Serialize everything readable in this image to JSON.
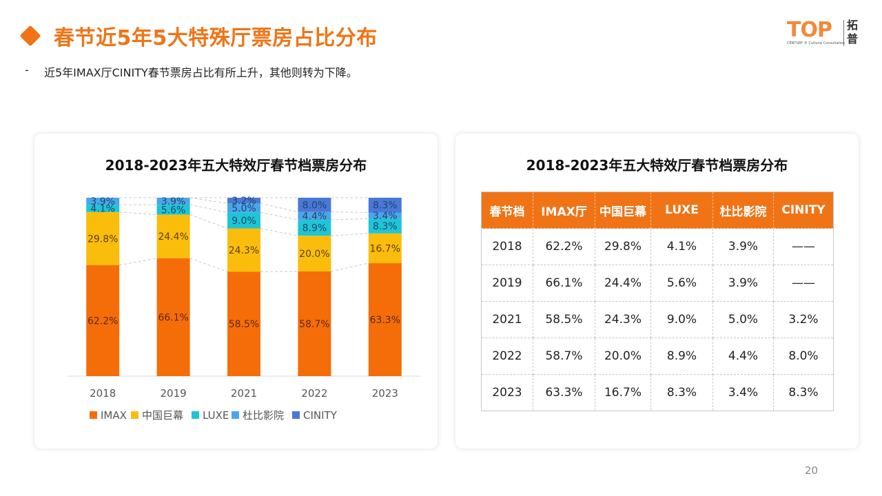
{
  "header": {
    "title": "春节近5年5大特殊厅票房占比分布",
    "bullet": "-",
    "subtitle": "近5年IMAX厅CINITY春节票房占比有所上升，其他则转为下降。"
  },
  "logo": {
    "brand": "TOP",
    "tagline": "CENTURY ® Cultural Consultation",
    "cn": "拓普"
  },
  "colors": {
    "accent": "#f07416",
    "IMAX": "#f56d09",
    "中国巨幕": "#fbbd0b",
    "LUXE": "#1ec5d6",
    "杜比影院": "#4aa6ea",
    "CINITY": "#4a78d8"
  },
  "chart_data": {
    "type": "bar",
    "stacked": true,
    "percent_stacked": true,
    "title": "2018-2023年五大特效厅春节档票房分布",
    "categories": [
      "2018",
      "2019",
      "2021",
      "2022",
      "2023"
    ],
    "series": [
      {
        "name": "IMAX",
        "values": [
          62.2,
          66.1,
          58.5,
          58.7,
          63.3
        ],
        "labels": [
          "62.2%",
          "66.1%",
          "58.5%",
          "58.7%",
          "63.3%"
        ]
      },
      {
        "name": "中国巨幕",
        "values": [
          29.8,
          24.4,
          24.3,
          20.0,
          16.7
        ],
        "labels": [
          "29.8%",
          "24.4%",
          "24.3%",
          "20.0%",
          "16.7%"
        ]
      },
      {
        "name": "LUXE",
        "values": [
          4.1,
          5.6,
          9.0,
          8.9,
          8.3
        ],
        "labels": [
          "4.1%",
          "5.6%",
          "9.0%",
          "8.9%",
          "8.3%"
        ]
      },
      {
        "name": "杜比影院",
        "values": [
          3.9,
          3.9,
          5.0,
          4.4,
          3.4
        ],
        "labels": [
          "3.9%",
          "3.9%",
          "5.0%",
          "4.4%",
          "3.4%"
        ]
      },
      {
        "name": "CINITY",
        "values": [
          0,
          0,
          3.2,
          8.0,
          8.3
        ],
        "labels": [
          "",
          "",
          "3.2%",
          "8.0%",
          "8.3%"
        ]
      }
    ],
    "ylim": [
      0,
      100
    ],
    "xlabel": "",
    "ylabel": "",
    "series_lines": true,
    "grid": false,
    "legend": "bottom"
  },
  "table": {
    "title": "2018-2023年五大特效厅春节档票房分布",
    "headers": [
      "春节档",
      "IMAX厅",
      "中国巨幕",
      "LUXE",
      "杜比影院",
      "CINITY"
    ],
    "rows": [
      [
        "2018",
        "62.2%",
        "29.8%",
        "4.1%",
        "3.9%",
        "——"
      ],
      [
        "2019",
        "66.1%",
        "24.4%",
        "5.6%",
        "3.9%",
        "——"
      ],
      [
        "2021",
        "58.5%",
        "24.3%",
        "9.0%",
        "5.0%",
        "3.2%"
      ],
      [
        "2022",
        "58.7%",
        "20.0%",
        "8.9%",
        "4.4%",
        "8.0%"
      ],
      [
        "2023",
        "63.3%",
        "16.7%",
        "8.3%",
        "3.4%",
        "8.3%"
      ]
    ]
  },
  "page_number": "20"
}
